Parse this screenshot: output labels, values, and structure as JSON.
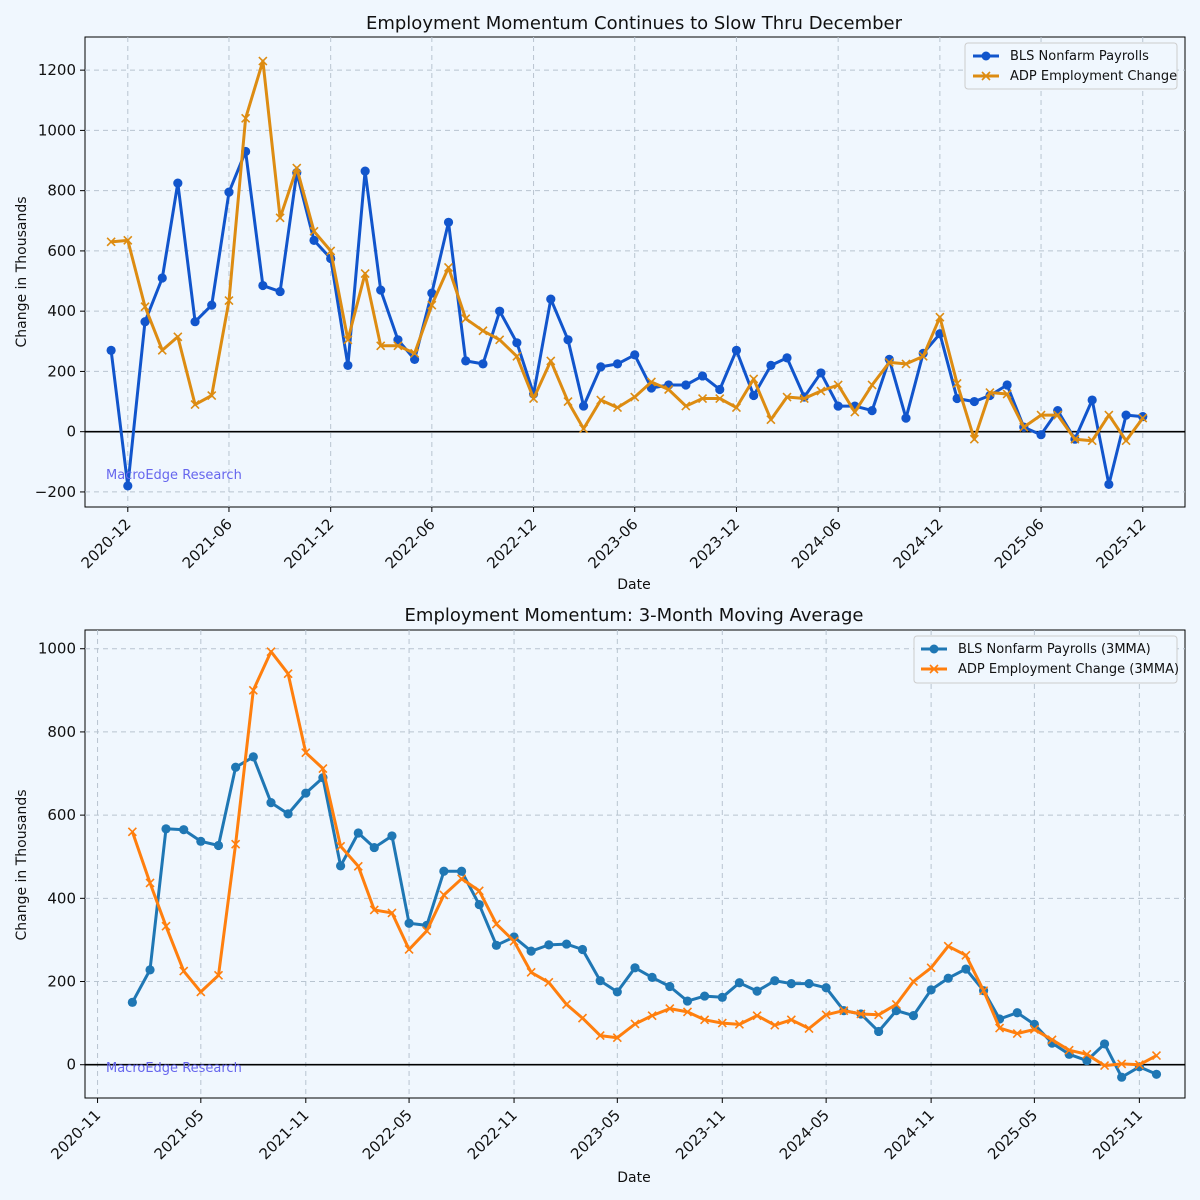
{
  "watermark": "MacroEdge Research",
  "colors": {
    "background": "#f0f7fe",
    "bls_top": "#1155cc",
    "adp_top": "#dd8c12",
    "bls_bottom": "#1f77b4",
    "adp_bottom": "#ff7f0e",
    "zero": "#000000",
    "watermark": "#6666ee"
  },
  "chart_data": [
    {
      "type": "line",
      "title": "Employment Momentum Continues to Slow Thru December",
      "xlabel": "Date",
      "ylabel": "Change in Thousands",
      "ylim": [
        -250,
        1310
      ],
      "yticks": [
        -200,
        0,
        200,
        400,
        600,
        800,
        1000,
        1200
      ],
      "ytick_labels": [
        "−200",
        "0",
        "200",
        "400",
        "600",
        "800",
        "1000",
        "1200"
      ],
      "xlim": [
        "2020-09-15",
        "2026-02-15"
      ],
      "xticks": [
        "2020-12",
        "2021-06",
        "2021-12",
        "2022-06",
        "2022-12",
        "2023-06",
        "2023-12",
        "2024-06",
        "2024-12",
        "2025-06",
        "2025-12"
      ],
      "x_start": "2020-11",
      "legend_position": "top-right",
      "grid": true,
      "series": [
        {
          "name": "BLS Nonfarm Payrolls",
          "marker": "circle",
          "color": "#1155cc",
          "values": [
            270,
            -180,
            365,
            510,
            825,
            365,
            420,
            795,
            930,
            485,
            465,
            860,
            635,
            575,
            220,
            865,
            470,
            305,
            240,
            460,
            695,
            235,
            225,
            400,
            295,
            125,
            440,
            305,
            85,
            215,
            225,
            255,
            145,
            155,
            155,
            185,
            140,
            270,
            120,
            220,
            245,
            115,
            195,
            85,
            85,
            70,
            240,
            45,
            260,
            325,
            110,
            100,
            120,
            155,
            15,
            -10,
            70,
            -25,
            105,
            -175,
            55,
            50
          ]
        },
        {
          "name": "ADP Employment Change",
          "marker": "x",
          "color": "#dd8c12",
          "values": [
            630,
            635,
            415,
            270,
            315,
            90,
            120,
            435,
            1040,
            1230,
            710,
            875,
            665,
            600,
            305,
            525,
            285,
            285,
            260,
            420,
            545,
            375,
            335,
            305,
            250,
            110,
            235,
            100,
            10,
            105,
            80,
            115,
            165,
            140,
            85,
            110,
            110,
            80,
            175,
            40,
            115,
            110,
            135,
            155,
            65,
            155,
            230,
            225,
            250,
            380,
            160,
            -25,
            130,
            125,
            15,
            55,
            55,
            -25,
            -30,
            55,
            -30,
            45
          ]
        }
      ]
    },
    {
      "type": "line",
      "title": "Employment Momentum: 3-Month Moving Average",
      "xlabel": "Date",
      "ylabel": "Change in Thousands",
      "ylim": [
        -80,
        1045
      ],
      "yticks": [
        0,
        200,
        400,
        600,
        800,
        1000
      ],
      "ytick_labels": [
        "0",
        "200",
        "400",
        "600",
        "800",
        "1000"
      ],
      "xlim": [
        "2020-10-10",
        "2026-01-20"
      ],
      "xticks": [
        "2020-11",
        "2021-05",
        "2021-11",
        "2022-05",
        "2022-11",
        "2023-05",
        "2023-11",
        "2024-05",
        "2024-11",
        "2025-05",
        "2025-11"
      ],
      "x_start": "2021-01",
      "legend_position": "top-right",
      "grid": true,
      "series": [
        {
          "name": "BLS Nonfarm Payrolls (3MMA)",
          "marker": "circle",
          "color": "#1f77b4",
          "values": [
            150,
            228,
            567,
            565,
            537,
            527,
            715,
            740,
            630,
            603,
            653,
            690,
            478,
            557,
            522,
            550,
            340,
            335,
            465,
            465,
            385,
            287,
            307,
            273,
            288,
            290,
            277,
            202,
            175,
            233,
            210,
            188,
            153,
            165,
            162,
            197,
            177,
            202,
            195,
            195,
            185,
            130,
            122,
            80,
            130,
            118,
            180,
            208,
            230,
            178,
            110,
            125,
            97,
            52,
            25,
            10,
            50,
            -30,
            -5,
            -23
          ]
        },
        {
          "name": "ADP Employment Change (3MMA)",
          "marker": "x",
          "color": "#ff7f0e",
          "values": [
            560,
            437,
            333,
            225,
            175,
            215,
            530,
            900,
            993,
            940,
            750,
            712,
            525,
            477,
            372,
            365,
            277,
            322,
            408,
            447,
            418,
            338,
            297,
            222,
            198,
            145,
            112,
            70,
            65,
            98,
            118,
            135,
            127,
            108,
            100,
            97,
            118,
            95,
            108,
            87,
            120,
            130,
            122,
            120,
            145,
            200,
            233,
            285,
            263,
            178,
            88,
            75,
            85,
            60,
            35,
            25,
            -2,
            2,
            0,
            22
          ]
        }
      ]
    }
  ]
}
